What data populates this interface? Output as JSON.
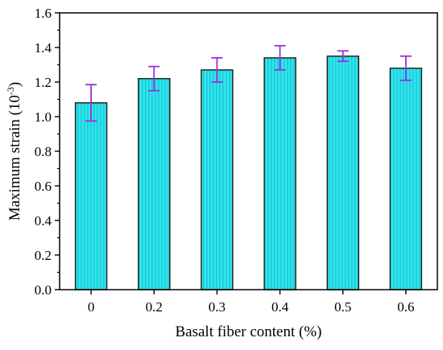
{
  "chart_data": {
    "type": "bar",
    "title": "",
    "xlabel": "Basalt fiber content (%)",
    "ylabel": {
      "prefix": "Maximum strain (10",
      "superscript": "-3",
      "suffix": ")"
    },
    "categories": [
      "0",
      "0.2",
      "0.3",
      "0.4",
      "0.5",
      "0.6"
    ],
    "values": [
      1.08,
      1.22,
      1.27,
      1.34,
      1.35,
      1.28
    ],
    "error_bars": [
      0.105,
      0.07,
      0.07,
      0.07,
      0.03,
      0.07
    ],
    "ylim": [
      0.0,
      1.6
    ],
    "yticks": [
      "0.0",
      "0.2",
      "0.4",
      "0.6",
      "0.8",
      "1.0",
      "1.2",
      "1.4",
      "1.6"
    ],
    "ytick_values": [
      0.0,
      0.2,
      0.4,
      0.6,
      0.8,
      1.0,
      1.2,
      1.4,
      1.6
    ],
    "grid": false,
    "legend": "none",
    "colors": {
      "bar_fill": "#30e6ee",
      "bar_stripe": "#1fc9d6",
      "bar_edge": "#1a1a1a",
      "error_bar": "#9b30d9",
      "axis": "#000000"
    }
  }
}
